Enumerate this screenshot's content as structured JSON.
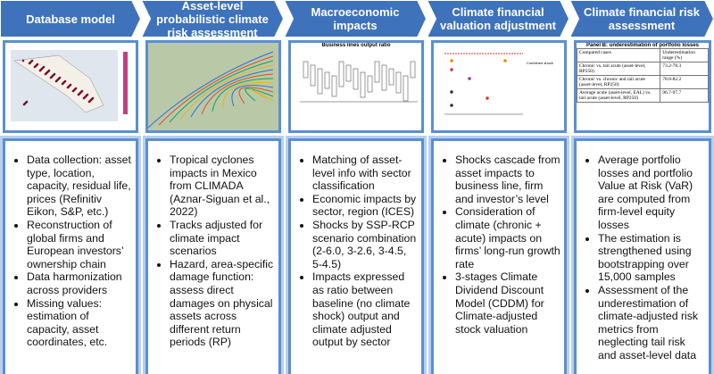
{
  "columns": [
    {
      "title": "Database model",
      "bullets": [
        "Data collection: asset type, location, capacity, residual life, prices (Refinitiv Eikon, S&P, etc.)",
        "Reconstruction of global firms and European investors’ ownership chain",
        "Data harmonization across providers",
        "Missing values: estimation of capacity, asset coordinates, etc."
      ]
    },
    {
      "title": "Asset-level probabilistic climate risk assessment",
      "bullets": [
        "Tropical cyclones impacts in Mexico from CLIMADA (Aznar-Siguan et al., 2022)",
        "Tracks adjusted for climate impact scenarios",
        "Hazard, area-specific damage function: assess direct damages on  physical assets across different return periods (RP)"
      ]
    },
    {
      "title": "Macroeconomic impacts",
      "thumbnail_title": "Business lines output ratio",
      "bullets": [
        "Matching of asset-level info with sector classification",
        "Economic impacts by sector, region (ICES)",
        "Shocks by SSP-RCP scenario combination (2-6.0, 3-2.6, 3-4.5, 5-4.5)",
        "Impacts expressed as ratio between baseline (no climate shock) output and climate adjusted output by sector"
      ]
    },
    {
      "title": "Climate financial valuation adjustment",
      "thumbnail_title": "Combined shock",
      "bullets": [
        "Shocks cascade from asset impacts to business line, firm and investor’s level",
        "Consideration of climate (chronic + acute) impacts on firms’ long-run growth rate",
        "3-stages Climate Dividend Discount Model (CDDM) for Climate-adjusted stock valuation"
      ]
    },
    {
      "title": "Climate financial risk assessment",
      "table": {
        "caption": "Panel B: underestimation of portfolio losses",
        "header": [
          "Compared cases",
          "Underestimation range (%)"
        ],
        "rows": [
          [
            "Chronic vs. tail acute (asset-level, RP250)",
            "73.2-78.3"
          ],
          [
            "Chronic vs. chronic and tail acute (asset-level, RP250)",
            "78.8-82.2"
          ],
          [
            "Average acute (asset-level, EAL) vs. tail acute (asset-level, RP250)",
            "96.7-97.7"
          ]
        ]
      },
      "bullets": [
        "Average portfolio losses and portfolio Value at Risk (VaR) are computed from firm-level equity losses",
        "The estimation is strengthened using bootstrapping over 15,000 samples",
        "Assessment of the underestimation of climate-adjusted risk metrics from neglecting tail risk and asset-level data"
      ]
    }
  ]
}
